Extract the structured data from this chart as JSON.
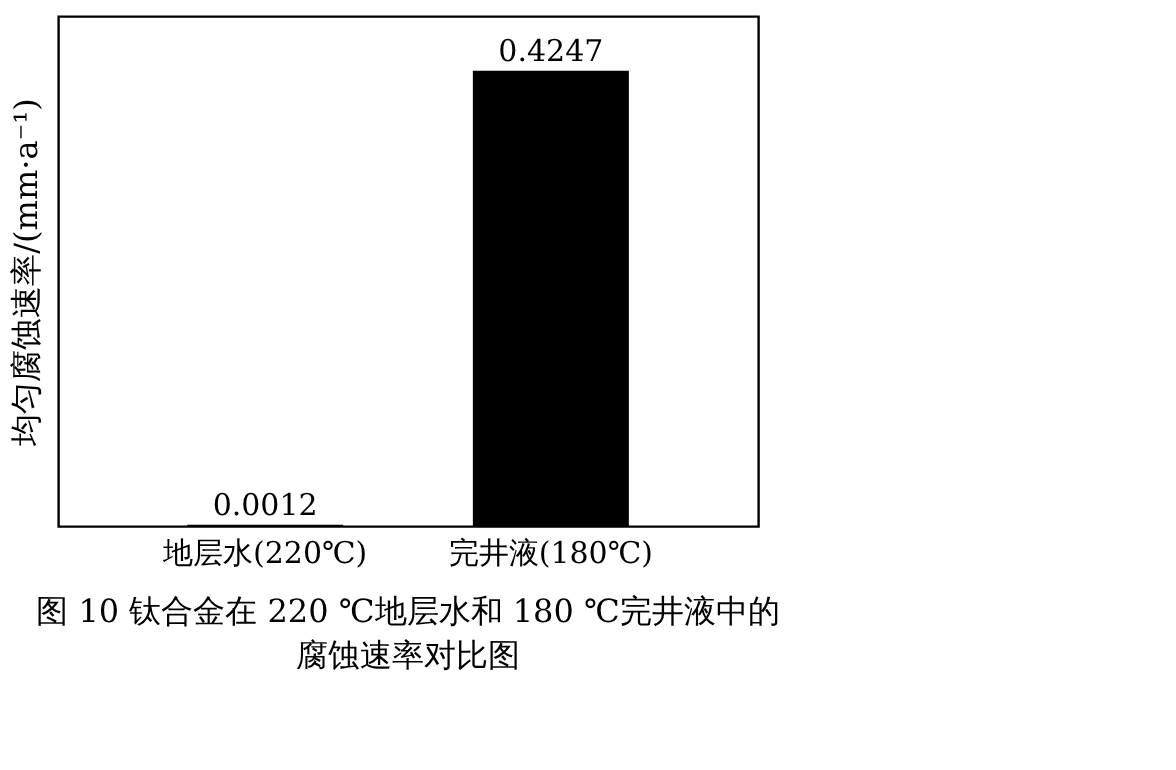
{
  "chart_data": {
    "type": "bar",
    "title": "图 10  钛合金在 220 ℃地层水和 180 ℃完井液中的腐蚀速率对比图",
    "ylabel": "均匀腐蚀速率/(mm·a⁻¹)",
    "categories": [
      "地层水(220℃)",
      "完井液(180℃)"
    ],
    "values": [
      0.0012,
      0.4247
    ],
    "color": "#000000",
    "data_labels": true,
    "tick_labels": "x",
    "grid": false
  }
}
